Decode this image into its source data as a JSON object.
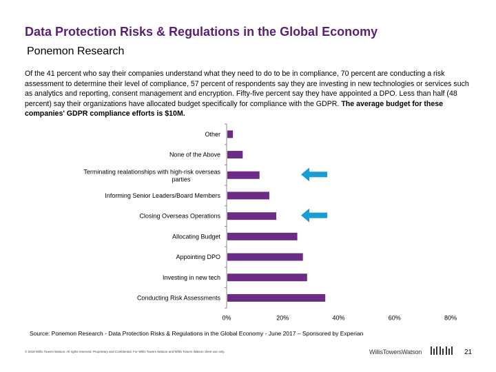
{
  "slide": {
    "title": "Data Protection Risks & Regulations in the Global Economy",
    "subtitle": "Ponemon Research",
    "body_text": "Of the 41 percent who say their companies understand what they need to do to be in compliance, 70 percent are conducting a risk assessment to determine their level of compliance, 57 percent of respondents say they are investing in new technologies or services such as analytics and reporting, consent management and encryption. Fifty-five percent say they have appointed a DPO.  Less than half (48 percent) say their organizations have allocated budget specifically for compliance with the GDPR. ",
    "body_text_bold": "The average budget for these companies' GDPR compliance efforts is $10M.",
    "source": "Source: Ponemon Research - Data Protection Risks & Regulations in the Global Economy - June 2017 – Sponsored by Experian",
    "footer_left": "© 2018 Willis Towers Watson. All rights reserved. Proprietary and Confidential. For Willis Towers Watson and Willis Towers Watson client use only.",
    "footer_brand": "WillisTowersWatson",
    "page_number": "21"
  },
  "colors": {
    "title": "#5a1f74",
    "bar": "#6b2c86",
    "arrow": "#1a9dd4",
    "axis": "#888888"
  },
  "icons": {
    "arrow": "arrow-left-icon",
    "logo": "wtw-bars-logo-icon"
  },
  "chart_data": {
    "type": "bar",
    "orientation": "horizontal",
    "categories": [
      "Other",
      "None of the Above",
      "Terminating realationships with high-risk overseas parties",
      "Informing Senior Leaders/Board Members",
      "Closing Overseas Operations",
      "Allocating Budget",
      "Appointing DPO",
      "Investing in new tech",
      "Conducting Risk Assessments"
    ],
    "values": [
      0.02,
      0.055,
      0.115,
      0.15,
      0.175,
      0.25,
      0.27,
      0.285,
      0.35
    ],
    "xlim": [
      0,
      0.8
    ],
    "x_ticks": [
      0,
      0.2,
      0.4,
      0.6,
      0.8
    ],
    "x_tick_labels": [
      "0%",
      "20%",
      "40%",
      "60%",
      "80%"
    ],
    "highlighted_categories": [
      "Terminating realationships with high-risk overseas parties",
      "Closing Overseas Operations"
    ],
    "grid": false
  }
}
